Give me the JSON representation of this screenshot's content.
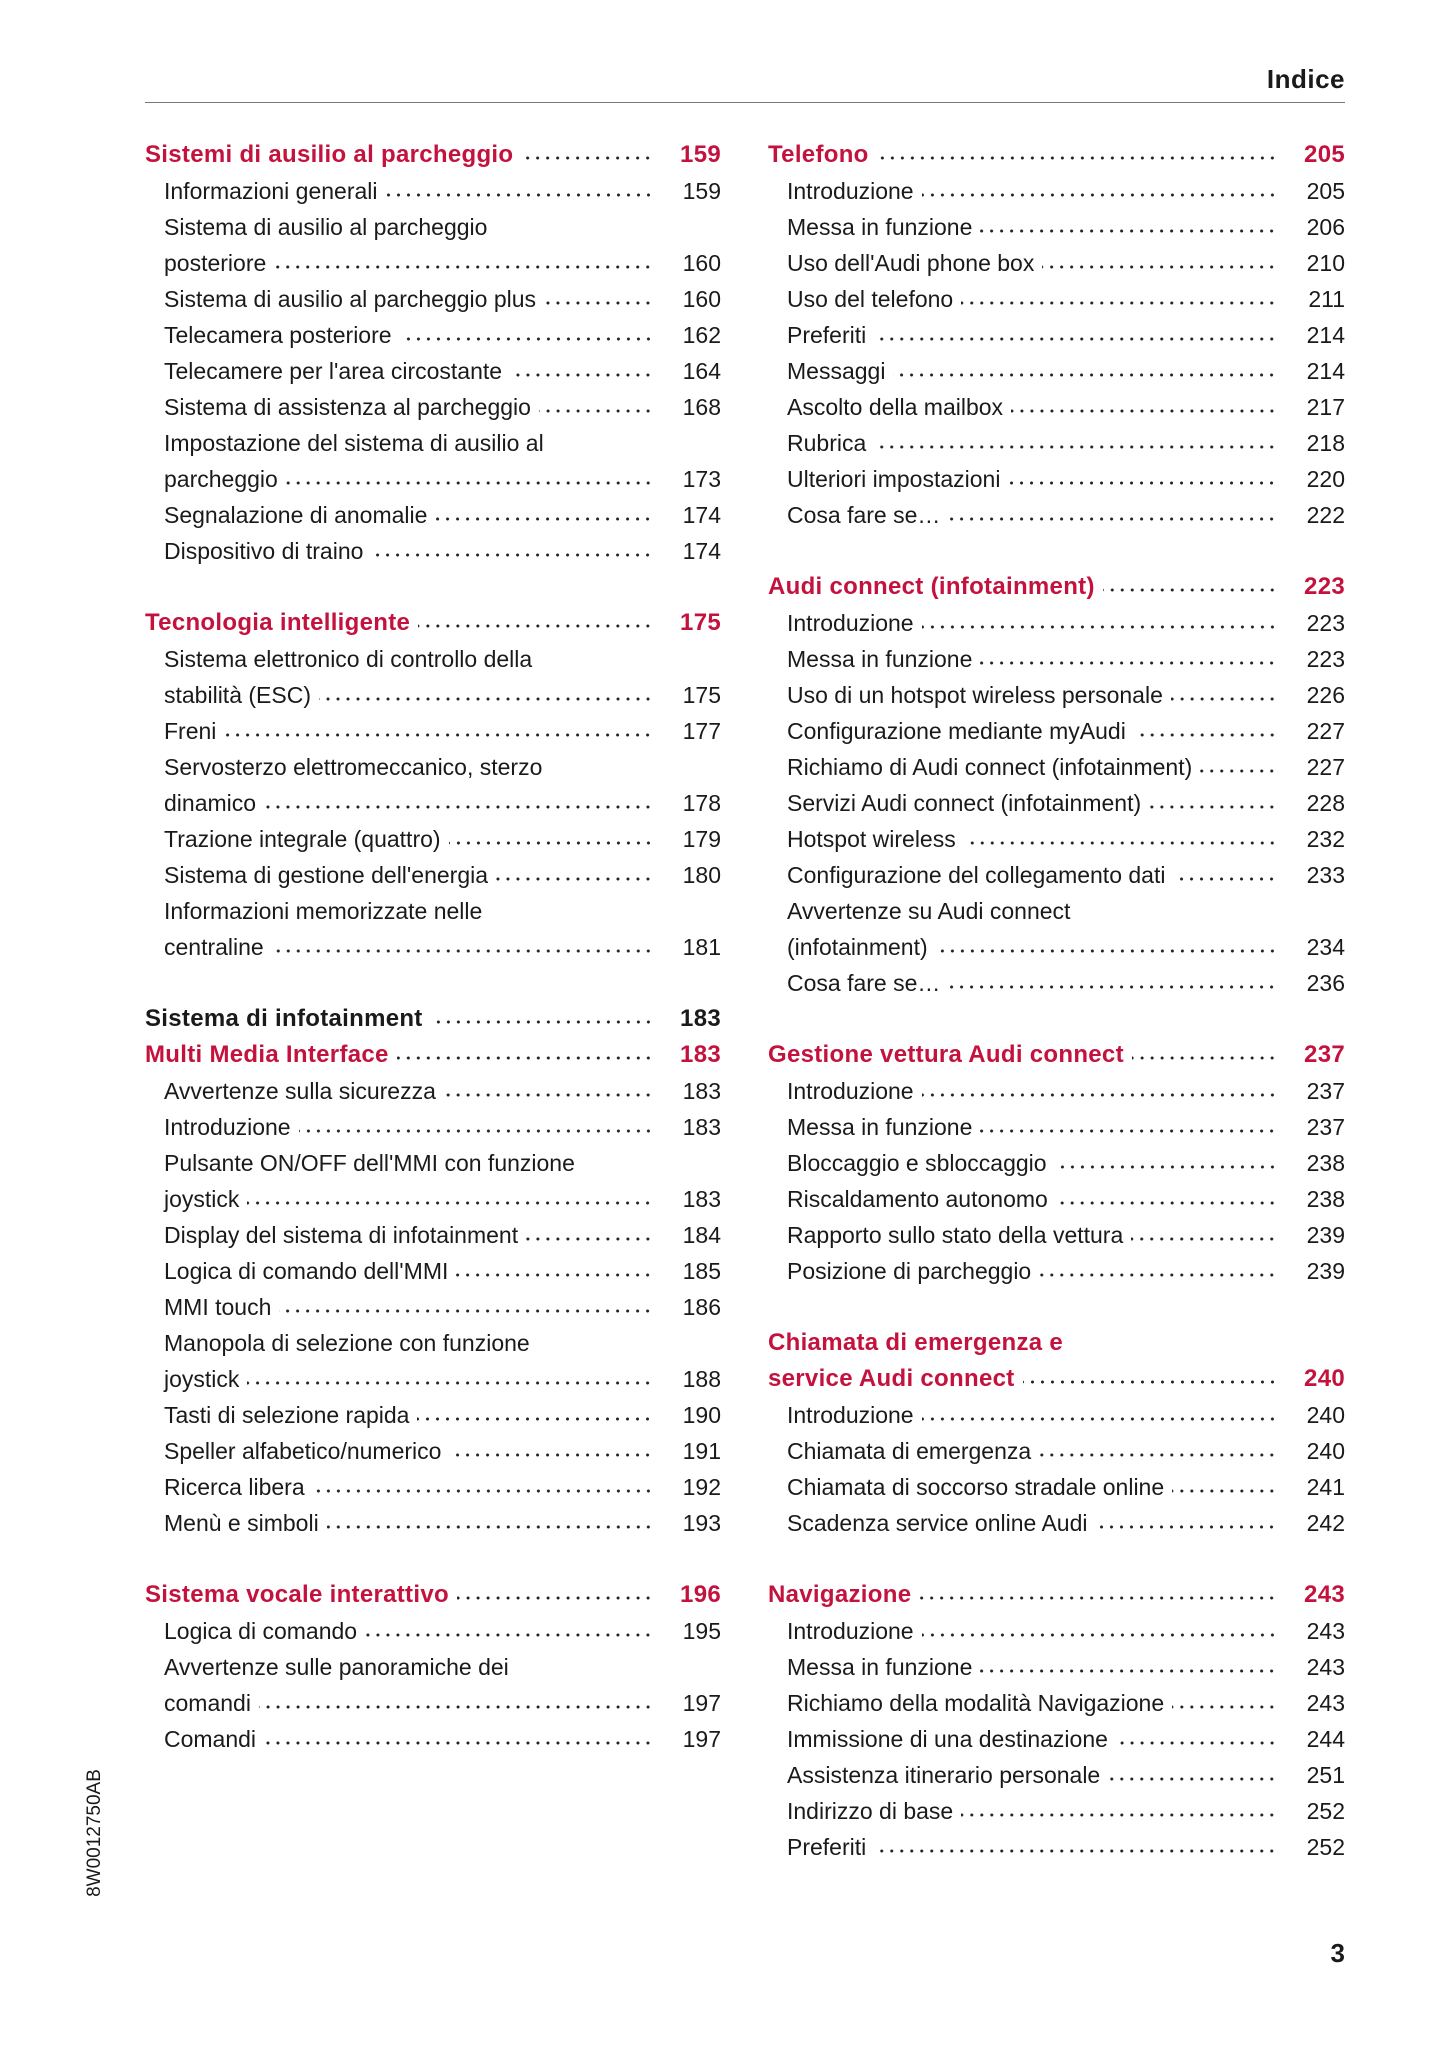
{
  "header": {
    "title": "Indice"
  },
  "side_code": "8W0012750AB",
  "page_number": "3",
  "accent_color": "#c4123e",
  "columns": [
    {
      "sections": [
        {
          "title": [
            "Sistemi di ausilio al parcheggio"
          ],
          "page": 159,
          "highlight": true,
          "entries": [
            {
              "lines": [
                "Informazioni generali"
              ],
              "page": 159
            },
            {
              "lines": [
                "Sistema di ausilio al parcheggio",
                "posteriore"
              ],
              "page": 160
            },
            {
              "lines": [
                "Sistema di ausilio al parcheggio plus"
              ],
              "page": 160
            },
            {
              "lines": [
                "Telecamera posteriore"
              ],
              "page": 162
            },
            {
              "lines": [
                "Telecamere per l'area circostante"
              ],
              "page": 164
            },
            {
              "lines": [
                "Sistema di assistenza al parcheggio"
              ],
              "page": 168
            },
            {
              "lines": [
                "Impostazione del sistema di ausilio al",
                "parcheggio"
              ],
              "page": 173
            },
            {
              "lines": [
                "Segnalazione di anomalie"
              ],
              "page": 174
            },
            {
              "lines": [
                "Dispositivo di traino"
              ],
              "page": 174
            }
          ]
        },
        {
          "title": [
            "Tecnologia intelligente"
          ],
          "page": 175,
          "highlight": true,
          "entries": [
            {
              "lines": [
                "Sistema elettronico di controllo della",
                "stabilità (ESC)"
              ],
              "page": 175
            },
            {
              "lines": [
                "Freni"
              ],
              "page": 177
            },
            {
              "lines": [
                "Servosterzo elettromeccanico, sterzo",
                "dinamico"
              ],
              "page": 178
            },
            {
              "lines": [
                "Trazione integrale (quattro)"
              ],
              "page": 179
            },
            {
              "lines": [
                "Sistema di gestione dell'energia"
              ],
              "page": 180
            },
            {
              "lines": [
                "Informazioni memorizzate nelle",
                "centraline"
              ],
              "page": 181
            }
          ]
        },
        {
          "title": [
            "Sistema di infotainment"
          ],
          "page": 183,
          "highlight": false,
          "entries": []
        },
        {
          "title": [
            "Multi Media Interface"
          ],
          "page": 183,
          "highlight": true,
          "entries": [
            {
              "lines": [
                "Avvertenze sulla sicurezza"
              ],
              "page": 183
            },
            {
              "lines": [
                "Introduzione"
              ],
              "page": 183
            },
            {
              "lines": [
                "Pulsante ON/OFF dell'MMI con funzione",
                "joystick"
              ],
              "page": 183
            },
            {
              "lines": [
                "Display del sistema di infotainment"
              ],
              "page": 184
            },
            {
              "lines": [
                "Logica di comando dell'MMI"
              ],
              "page": 185
            },
            {
              "lines": [
                "MMI touch"
              ],
              "page": 186
            },
            {
              "lines": [
                "Manopola di selezione con funzione",
                "joystick"
              ],
              "page": 188
            },
            {
              "lines": [
                "Tasti di selezione rapida"
              ],
              "page": 190
            },
            {
              "lines": [
                "Speller alfabetico/numerico"
              ],
              "page": 191
            },
            {
              "lines": [
                "Ricerca libera"
              ],
              "page": 192
            },
            {
              "lines": [
                "Menù e simboli"
              ],
              "page": 193
            }
          ]
        },
        {
          "title": [
            "Sistema vocale interattivo"
          ],
          "page": 196,
          "highlight": true,
          "entries": [
            {
              "lines": [
                "Logica di comando"
              ],
              "page": 195
            },
            {
              "lines": [
                "Avvertenze sulle panoramiche dei",
                "comandi"
              ],
              "page": 197
            },
            {
              "lines": [
                "Comandi"
              ],
              "page": 197
            }
          ]
        }
      ]
    },
    {
      "sections": [
        {
          "title": [
            "Telefono"
          ],
          "page": 205,
          "highlight": true,
          "entries": [
            {
              "lines": [
                "Introduzione"
              ],
              "page": 205
            },
            {
              "lines": [
                "Messa in funzione"
              ],
              "page": 206
            },
            {
              "lines": [
                "Uso dell'Audi phone box"
              ],
              "page": 210
            },
            {
              "lines": [
                "Uso del telefono"
              ],
              "page": 211
            },
            {
              "lines": [
                "Preferiti"
              ],
              "page": 214
            },
            {
              "lines": [
                "Messaggi"
              ],
              "page": 214
            },
            {
              "lines": [
                "Ascolto della mailbox"
              ],
              "page": 217
            },
            {
              "lines": [
                "Rubrica"
              ],
              "page": 218
            },
            {
              "lines": [
                "Ulteriori impostazioni"
              ],
              "page": 220
            },
            {
              "lines": [
                "Cosa fare se…"
              ],
              "page": 222
            }
          ]
        },
        {
          "title": [
            "Audi connect (infotainment)"
          ],
          "page": 223,
          "highlight": true,
          "entries": [
            {
              "lines": [
                "Introduzione"
              ],
              "page": 223
            },
            {
              "lines": [
                "Messa in funzione"
              ],
              "page": 223
            },
            {
              "lines": [
                "Uso di un hotspot wireless personale"
              ],
              "page": 226
            },
            {
              "lines": [
                "Configurazione mediante myAudi"
              ],
              "page": 227
            },
            {
              "lines": [
                "Richiamo di Audi connect (infotainment)"
              ],
              "page": 227
            },
            {
              "lines": [
                "Servizi Audi connect (infotainment)"
              ],
              "page": 228
            },
            {
              "lines": [
                "Hotspot wireless"
              ],
              "page": 232
            },
            {
              "lines": [
                "Configurazione del collegamento dati"
              ],
              "page": 233
            },
            {
              "lines": [
                "Avvertenze su Audi connect",
                "(infotainment)"
              ],
              "page": 234
            },
            {
              "lines": [
                "Cosa fare se…"
              ],
              "page": 236
            }
          ]
        },
        {
          "title": [
            "Gestione vettura Audi connect"
          ],
          "page": 237,
          "highlight": true,
          "entries": [
            {
              "lines": [
                "Introduzione"
              ],
              "page": 237
            },
            {
              "lines": [
                "Messa in funzione"
              ],
              "page": 237
            },
            {
              "lines": [
                "Bloccaggio e sbloccaggio"
              ],
              "page": 238
            },
            {
              "lines": [
                "Riscaldamento autonomo"
              ],
              "page": 238
            },
            {
              "lines": [
                "Rapporto sullo stato della vettura"
              ],
              "page": 239
            },
            {
              "lines": [
                "Posizione di parcheggio"
              ],
              "page": 239
            }
          ]
        },
        {
          "title": [
            "Chiamata di emergenza e",
            "service Audi connect"
          ],
          "page": 240,
          "highlight": true,
          "entries": [
            {
              "lines": [
                "Introduzione"
              ],
              "page": 240
            },
            {
              "lines": [
                "Chiamata di emergenza"
              ],
              "page": 240
            },
            {
              "lines": [
                "Chiamata di soccorso stradale online"
              ],
              "page": 241
            },
            {
              "lines": [
                "Scadenza service online Audi"
              ],
              "page": 242
            }
          ]
        },
        {
          "title": [
            "Navigazione"
          ],
          "page": 243,
          "highlight": true,
          "entries": [
            {
              "lines": [
                "Introduzione"
              ],
              "page": 243
            },
            {
              "lines": [
                "Messa in funzione"
              ],
              "page": 243
            },
            {
              "lines": [
                "Richiamo della modalità Navigazione"
              ],
              "page": 243
            },
            {
              "lines": [
                "Immissione di una destinazione"
              ],
              "page": 244
            },
            {
              "lines": [
                "Assistenza itinerario personale"
              ],
              "page": 251
            },
            {
              "lines": [
                "Indirizzo di base"
              ],
              "page": 252
            },
            {
              "lines": [
                "Preferiti"
              ],
              "page": 252
            }
          ]
        }
      ]
    }
  ]
}
